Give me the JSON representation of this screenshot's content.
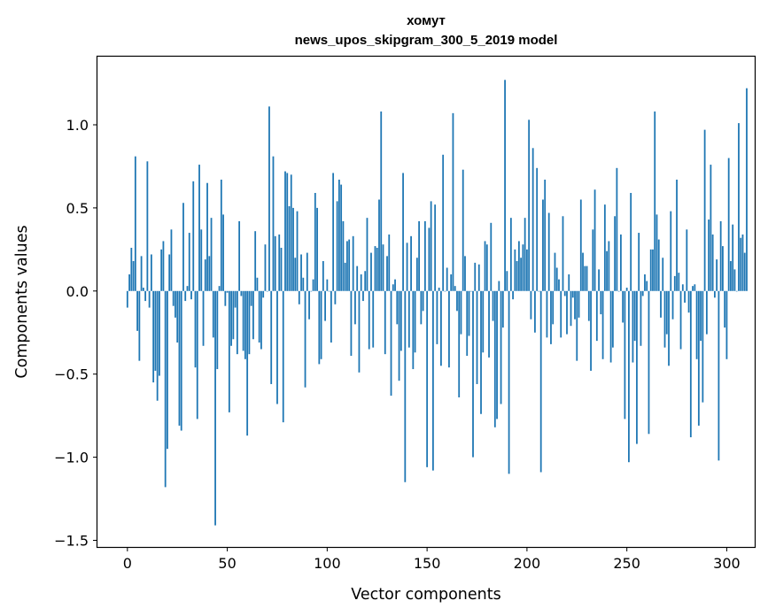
{
  "chart_data": {
    "type": "bar",
    "title": "хомут",
    "subtitle": "news_upos_skipgram_300_5_2019 model",
    "xlabel": "Vector components",
    "ylabel": "Components values",
    "xlim": [
      -15,
      314
    ],
    "ylim": [
      -1.54,
      1.41
    ],
    "xticks": [
      0,
      50,
      100,
      150,
      200,
      250,
      300
    ],
    "xtick_labels": [
      "0",
      "50",
      "100",
      "150",
      "200",
      "250",
      "300"
    ],
    "yticks": [
      -1.5,
      -1.0,
      -0.5,
      0.0,
      0.5,
      1.0
    ],
    "ytick_labels": [
      "−1.5",
      "−1.0",
      "−0.5",
      "0.0",
      "0.5",
      "1.0"
    ],
    "bar_color": "#1f77b4",
    "values": [
      -0.1,
      0.1,
      0.26,
      0.18,
      0.81,
      -0.24,
      -0.42,
      0.21,
      0.02,
      -0.06,
      0.78,
      -0.1,
      0.22,
      -0.55,
      -0.48,
      -0.66,
      -0.51,
      0.25,
      0.3,
      -1.18,
      -0.95,
      0.22,
      0.37,
      -0.09,
      -0.16,
      -0.31,
      -0.81,
      -0.84,
      0.53,
      -0.06,
      0.03,
      0.35,
      -0.05,
      0.66,
      -0.46,
      -0.77,
      0.76,
      0.37,
      -0.33,
      0.19,
      0.65,
      0.21,
      0.44,
      -0.28,
      -1.41,
      -0.47,
      0.03,
      0.67,
      0.46,
      -0.09,
      -0.01,
      -0.73,
      -0.33,
      -0.29,
      -0.1,
      -0.38,
      0.42,
      -0.03,
      -0.36,
      -0.41,
      -0.87,
      -0.38,
      -0.09,
      -0.29,
      0.36,
      0.08,
      -0.31,
      -0.35,
      -0.04,
      0.28,
      0.0,
      1.11,
      -0.56,
      0.81,
      0.33,
      -0.68,
      0.34,
      0.26,
      -0.79,
      0.72,
      0.71,
      0.51,
      0.7,
      0.5,
      0.2,
      0.48,
      -0.08,
      0.22,
      0.08,
      -0.58,
      0.23,
      -0.17,
      0.0,
      0.07,
      0.59,
      0.5,
      -0.44,
      -0.41,
      0.18,
      -0.18,
      0.07,
      0.0,
      -0.31,
      0.71,
      -0.08,
      0.54,
      0.67,
      0.64,
      0.42,
      0.17,
      0.3,
      0.31,
      -0.39,
      0.33,
      -0.2,
      0.15,
      -0.49,
      0.1,
      -0.06,
      0.12,
      0.44,
      -0.35,
      0.23,
      -0.34,
      0.27,
      0.26,
      0.55,
      1.08,
      0.28,
      -0.38,
      0.21,
      0.34,
      -0.63,
      0.04,
      0.07,
      -0.2,
      -0.54,
      -0.36,
      0.71,
      -1.15,
      0.29,
      -0.34,
      0.33,
      -0.47,
      -0.37,
      0.2,
      0.42,
      -0.2,
      -0.12,
      0.42,
      -1.06,
      0.38,
      0.54,
      -1.08,
      0.52,
      -0.32,
      0.02,
      -0.45,
      0.82,
      0.0,
      0.14,
      -0.46,
      0.1,
      1.07,
      0.03,
      -0.12,
      -0.64,
      -0.26,
      0.73,
      0.21,
      -0.39,
      -0.27,
      0.0,
      -1.0,
      0.17,
      -0.56,
      0.16,
      -0.74,
      -0.37,
      0.3,
      0.28,
      -0.4,
      0.41,
      -0.18,
      -0.82,
      -0.77,
      0.06,
      -0.68,
      -0.22,
      1.27,
      0.12,
      -1.1,
      0.44,
      -0.05,
      0.25,
      0.18,
      0.3,
      0.2,
      0.28,
      0.44,
      0.25,
      1.03,
      -0.17,
      0.86,
      -0.25,
      0.74,
      0.0,
      -1.09,
      0.55,
      0.67,
      -0.28,
      0.47,
      -0.32,
      -0.2,
      0.23,
      0.14,
      0.07,
      -0.28,
      0.45,
      -0.03,
      -0.26,
      0.1,
      -0.21,
      -0.04,
      -0.17,
      -0.42,
      -0.16,
      0.55,
      0.23,
      0.15,
      0.15,
      -0.18,
      -0.48,
      0.37,
      0.61,
      -0.3,
      0.13,
      -0.14,
      -0.41,
      0.52,
      0.24,
      0.3,
      -0.43,
      -0.34,
      0.45,
      0.74,
      0.0,
      0.34,
      -0.19,
      -0.77,
      0.02,
      -1.03,
      0.59,
      -0.43,
      -0.3,
      -0.92,
      0.35,
      -0.33,
      -0.03,
      0.1,
      0.06,
      -0.86,
      0.25,
      0.25,
      1.08,
      0.46,
      0.31,
      -0.16,
      0.2,
      -0.34,
      -0.26,
      -0.45,
      0.48,
      -0.17,
      0.09,
      0.67,
      0.11,
      -0.35,
      0.04,
      -0.07,
      0.37,
      -0.13,
      -0.88,
      0.03,
      0.04,
      -0.41,
      -0.81,
      -0.3,
      -0.67,
      0.97,
      -0.26,
      0.43,
      0.76,
      0.34,
      -0.04,
      0.19,
      -1.02,
      0.42,
      0.27,
      -0.22,
      -0.41,
      0.8,
      0.18,
      0.4,
      0.13,
      0.0,
      1.01,
      0.32,
      0.34,
      0.23,
      1.22
    ]
  }
}
